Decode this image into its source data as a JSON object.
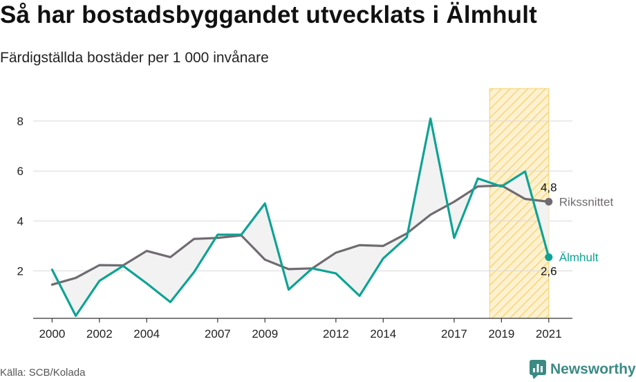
{
  "header": {
    "title": "Så har bostadsbyggandet utvecklats i Älmhult",
    "subtitle": "Färdigställda bostäder per 1 000 invånare"
  },
  "footer": {
    "source": "Källa: SCB/Kolada",
    "brand": "Newsworthy"
  },
  "colors": {
    "national": "#6f6b70",
    "local": "#0ea394",
    "highlight_fill": "#fdf1cf",
    "highlight_stroke": "#f6cf68",
    "area_fill": "#f2f2f2",
    "grid": "#d8d8d8",
    "brand": "#3b8a84"
  },
  "icons": {
    "brand_logo": "bar-chart-speech-bubble-icon"
  },
  "chart_data": {
    "type": "line",
    "x": [
      2000,
      2001,
      2002,
      2003,
      2004,
      2005,
      2006,
      2007,
      2008,
      2009,
      2010,
      2011,
      2012,
      2013,
      2014,
      2015,
      2016,
      2017,
      2018,
      2019,
      2020,
      2021
    ],
    "xticks": [
      2000,
      2002,
      2004,
      2007,
      2009,
      2012,
      2014,
      2017,
      2019,
      2021
    ],
    "yticks": [
      2,
      4,
      6,
      8
    ],
    "ylim": [
      0.1,
      9.3
    ],
    "xlim": [
      1999.2,
      2022.0
    ],
    "highlight_range": [
      2018.5,
      2021.0
    ],
    "series": [
      {
        "name": "Rikssnittet",
        "values": [
          1.45,
          1.72,
          2.23,
          2.22,
          2.8,
          2.55,
          3.28,
          3.32,
          3.42,
          2.45,
          2.07,
          2.1,
          2.73,
          3.03,
          3.0,
          3.5,
          4.25,
          4.77,
          5.38,
          5.42,
          4.88,
          4.77
        ],
        "end_label": "4,8"
      },
      {
        "name": "Älmhult",
        "values": [
          2.05,
          0.2,
          1.6,
          2.2,
          1.5,
          0.75,
          1.95,
          3.45,
          3.45,
          4.7,
          1.25,
          2.1,
          1.9,
          1.0,
          2.5,
          3.35,
          8.1,
          3.32,
          5.7,
          5.38,
          5.98,
          2.55
        ],
        "end_label": "2,6"
      }
    ]
  }
}
